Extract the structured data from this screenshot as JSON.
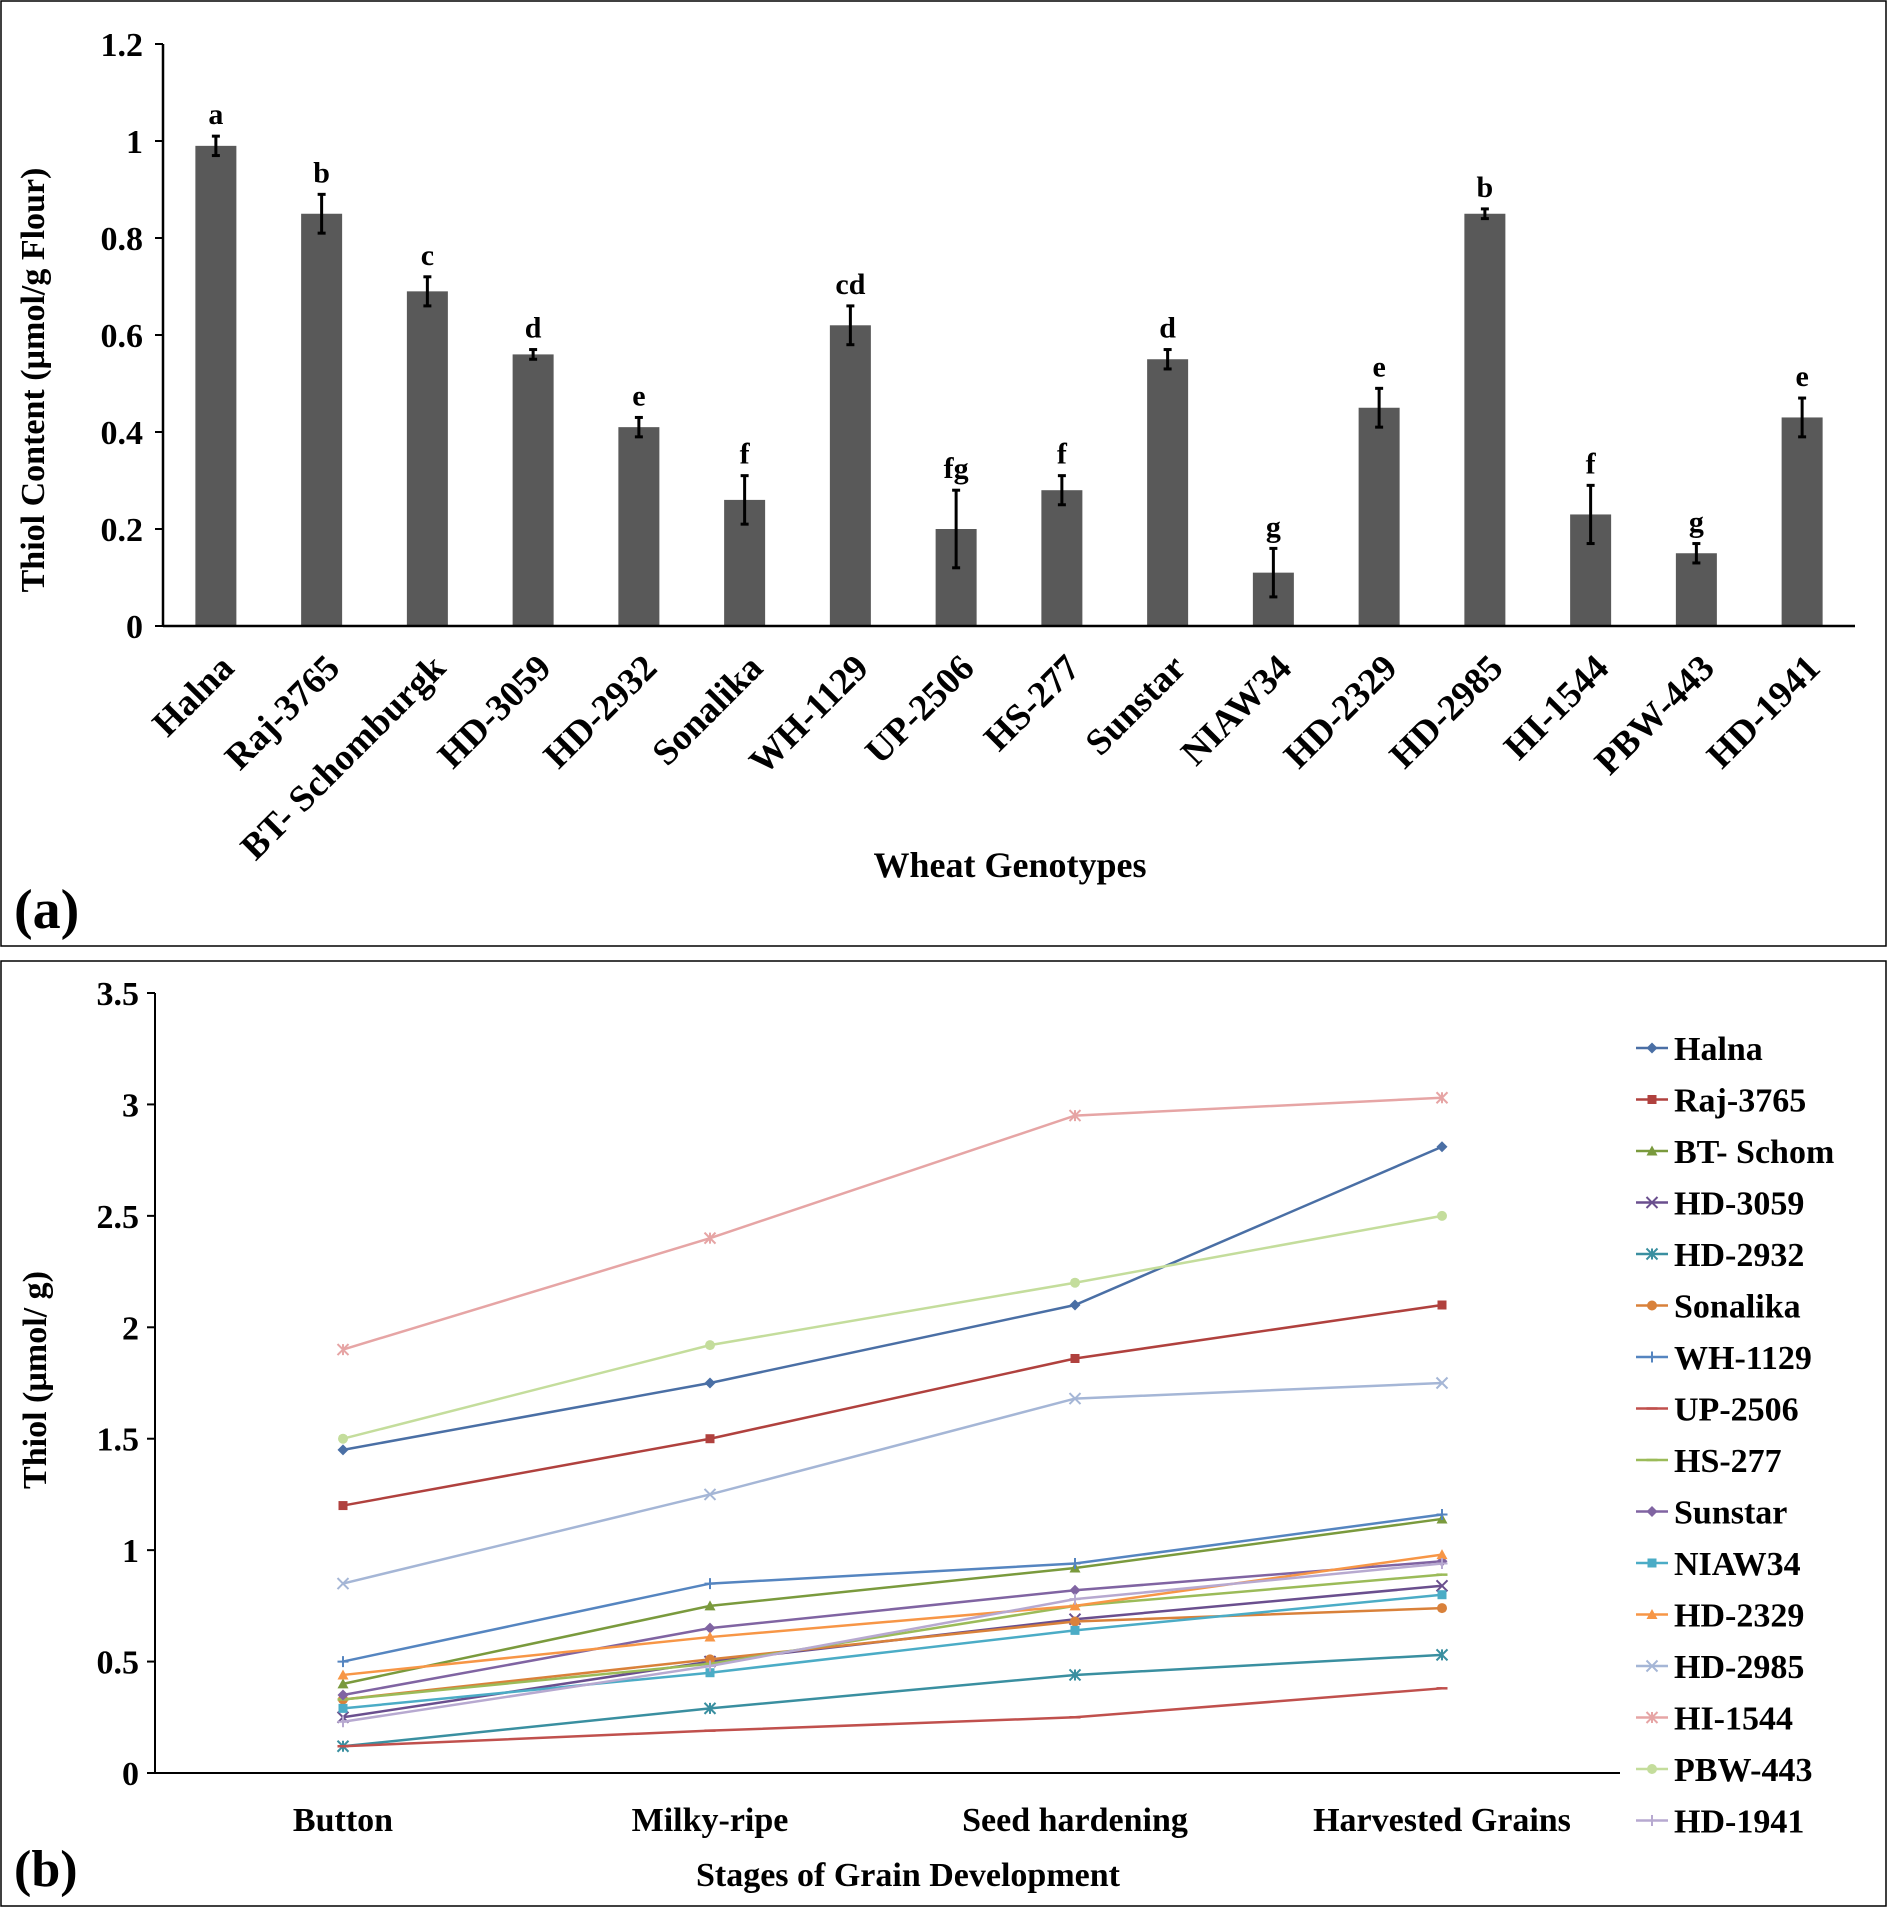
{
  "chart_data": [
    {
      "panel_label": "(a)",
      "type": "bar",
      "title": "",
      "xlabel": "Wheat Genotypes",
      "ylabel": "Thiol Content (µmol/g Flour)",
      "ylim": [
        0,
        1.2
      ],
      "yticks": [
        "0",
        "0.2",
        "0.4",
        "0.6",
        "0.8",
        "1",
        "1.2"
      ],
      "ytick_values": [
        0,
        0.2,
        0.4,
        0.6,
        0.8,
        1.0,
        1.2
      ],
      "categories": [
        "Halna",
        "Raj-3765",
        "BT- Schomburgk",
        "HD-3059",
        "HD-2932",
        "Sonalika",
        "WH-1129",
        "UP-2506",
        "HS-277",
        "Sunstar",
        "NIAW34",
        "HD-2329",
        "HD-2985",
        "HI-1544",
        "PBW-443",
        "HD-1941"
      ],
      "values": [
        0.99,
        0.85,
        0.69,
        0.56,
        0.41,
        0.26,
        0.62,
        0.2,
        0.28,
        0.55,
        0.11,
        0.45,
        0.85,
        0.23,
        0.15,
        0.43
      ],
      "errors": [
        0.02,
        0.04,
        0.03,
        0.01,
        0.02,
        0.05,
        0.04,
        0.08,
        0.03,
        0.02,
        0.05,
        0.04,
        0.01,
        0.06,
        0.02,
        0.04
      ],
      "annotations": [
        "a",
        "b",
        "c",
        "d",
        "e",
        "f",
        "cd",
        "fg",
        "f",
        "d",
        "g",
        "e",
        "b",
        "f",
        "g",
        "e"
      ],
      "bar_color": "#595959",
      "grid": false
    },
    {
      "panel_label": "(b)",
      "type": "line",
      "title": "",
      "xlabel": "Stages of Grain Development",
      "ylabel": "Thiol (µmol/ g)",
      "ylim": [
        0,
        3.5
      ],
      "yticks": [
        "0",
        "0.5",
        "1",
        "1.5",
        "2",
        "2.5",
        "3",
        "3.5"
      ],
      "ytick_values": [
        0,
        0.5,
        1.0,
        1.5,
        2.0,
        2.5,
        3.0,
        3.5
      ],
      "categories": [
        "Button",
        "Milky-ripe",
        "Seed hardening",
        "Harvested Grains"
      ],
      "legend_position": "right",
      "grid": false,
      "series": [
        {
          "name": "Halna",
          "values": [
            1.45,
            1.75,
            2.1,
            2.81
          ],
          "color": "#4a6fa5",
          "marker": "diamond"
        },
        {
          "name": "Raj-3765",
          "values": [
            1.2,
            1.5,
            1.86,
            2.1
          ],
          "color": "#b0413e",
          "marker": "square"
        },
        {
          "name": "BT- Schom",
          "values": [
            0.4,
            0.75,
            0.92,
            1.14
          ],
          "color": "#7a9a3d",
          "marker": "triangle"
        },
        {
          "name": "HD-3059",
          "values": [
            0.25,
            0.5,
            0.69,
            0.84
          ],
          "color": "#6a4f8e",
          "marker": "x"
        },
        {
          "name": "HD-2932",
          "values": [
            0.12,
            0.29,
            0.44,
            0.53
          ],
          "color": "#3a8fa0",
          "marker": "star"
        },
        {
          "name": "Sonalika",
          "values": [
            0.33,
            0.51,
            0.68,
            0.74
          ],
          "color": "#d9813a",
          "marker": "circle"
        },
        {
          "name": "WH-1129",
          "values": [
            0.5,
            0.85,
            0.94,
            1.16
          ],
          "color": "#5585c0",
          "marker": "plus"
        },
        {
          "name": "UP-2506",
          "values": [
            0.12,
            0.19,
            0.25,
            0.38
          ],
          "color": "#c0504d",
          "marker": "dash"
        },
        {
          "name": "HS-277",
          "values": [
            0.33,
            0.49,
            0.75,
            0.89
          ],
          "color": "#9bbb59",
          "marker": "dash"
        },
        {
          "name": "Sunstar",
          "values": [
            0.35,
            0.65,
            0.82,
            0.95
          ],
          "color": "#8064a2",
          "marker": "diamond"
        },
        {
          "name": "NIAW34",
          "values": [
            0.29,
            0.45,
            0.64,
            0.8
          ],
          "color": "#4bacc6",
          "marker": "square"
        },
        {
          "name": "HD-2329",
          "values": [
            0.44,
            0.61,
            0.75,
            0.98
          ],
          "color": "#f79646",
          "marker": "triangle"
        },
        {
          "name": "HD-2985",
          "values": [
            0.85,
            1.25,
            1.68,
            1.75
          ],
          "color": "#a5b6d6",
          "marker": "x"
        },
        {
          "name": "HI-1544",
          "values": [
            1.9,
            2.4,
            2.95,
            3.03
          ],
          "color": "#e6a5a5",
          "marker": "star"
        },
        {
          "name": "PBW-443",
          "values": [
            1.5,
            1.92,
            2.2,
            2.5
          ],
          "color": "#c4dd9c",
          "marker": "circle"
        },
        {
          "name": "HD-1941",
          "values": [
            0.23,
            0.48,
            0.78,
            0.94
          ],
          "color": "#b7a9d0",
          "marker": "plus"
        }
      ]
    }
  ]
}
